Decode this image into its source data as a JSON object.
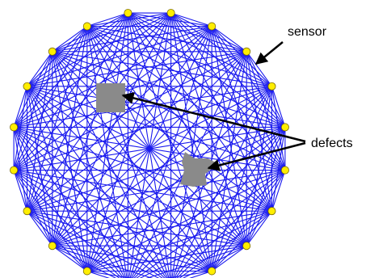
{
  "diagram": {
    "sensor_count": 20,
    "labels": {
      "sensor": "sensor",
      "defects": "defects"
    },
    "colors": {
      "ray": "#1a1aee",
      "sensor_fill": "#ffee00",
      "sensor_stroke": "#7a6a00",
      "defect": "#8a8a8a",
      "arrow": "#000000"
    }
  }
}
